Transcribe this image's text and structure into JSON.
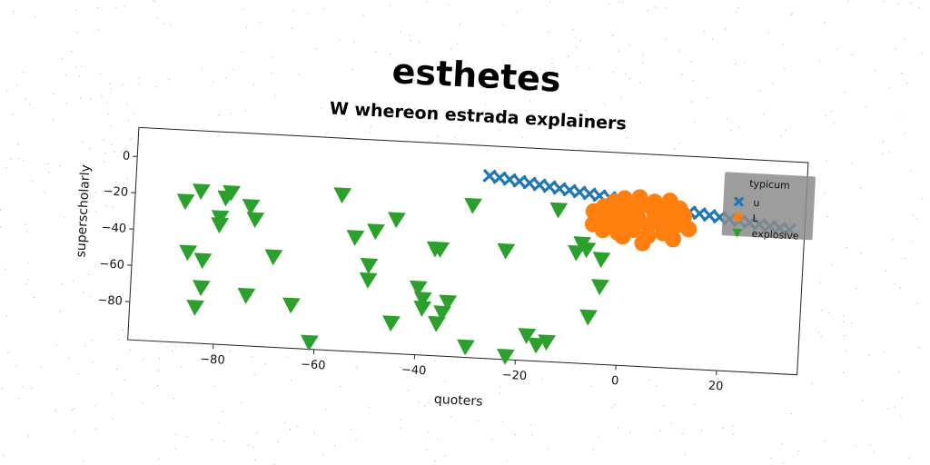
{
  "chart_data": {
    "type": "scatter",
    "title": "esthetes",
    "subtitle": "W whereon estrada explainers",
    "xlabel": "quoters",
    "ylabel": "superscholarly",
    "xlim": [
      -97,
      36
    ],
    "ylim": [
      -101,
      16
    ],
    "xticks": [
      -80,
      -60,
      -40,
      -20,
      0,
      20
    ],
    "yticks": [
      0,
      -20,
      -40,
      -60,
      -80
    ],
    "xtick_labels": [
      "−80",
      "−60",
      "−40",
      "−20",
      "0",
      "20"
    ],
    "ytick_labels": [
      "0",
      "−20",
      "−40",
      "−60",
      "−80"
    ],
    "grid": false,
    "legend": {
      "title": "typicum",
      "position": "upper right"
    },
    "series": [
      {
        "name": "u",
        "marker": "x",
        "color": "#1f77b4",
        "points": [
          [
            -27.0,
            -0.5
          ],
          [
            -25.0,
            -1.2
          ],
          [
            -23.0,
            -1.9
          ],
          [
            -21.0,
            -2.6
          ],
          [
            -19.0,
            -3.3
          ],
          [
            -17.0,
            -4.0
          ],
          [
            -15.0,
            -4.7
          ],
          [
            -13.0,
            -5.4
          ],
          [
            -11.0,
            -6.1
          ],
          [
            -9.0,
            -6.8
          ],
          [
            -7.0,
            -7.5
          ],
          [
            -5.0,
            -8.2
          ],
          [
            -3.0,
            -8.9
          ],
          [
            -1.0,
            -9.6
          ],
          [
            1.0,
            -10.3
          ],
          [
            3.0,
            -11.0
          ],
          [
            5.0,
            -11.7
          ],
          [
            7.0,
            -12.4
          ],
          [
            9.0,
            -13.1
          ],
          [
            11.0,
            -13.8
          ],
          [
            13.0,
            -14.5
          ],
          [
            15.0,
            -15.2
          ],
          [
            17.0,
            -15.9
          ],
          [
            19.0,
            -16.6
          ],
          [
            21.0,
            -17.3
          ],
          [
            23.0,
            -18.0
          ],
          [
            25.0,
            -18.7
          ],
          [
            27.0,
            -19.4
          ],
          [
            29.0,
            -20.1
          ],
          [
            31.0,
            -20.8
          ],
          [
            33.0,
            -21.5
          ]
        ]
      },
      {
        "name": "L",
        "marker": "o",
        "color": "#ff7f0e",
        "points": [
          [
            -6,
            -17
          ],
          [
            -4,
            -14
          ],
          [
            -2,
            -19
          ],
          [
            0,
            -15
          ],
          [
            2,
            -18
          ],
          [
            4,
            -12
          ],
          [
            6,
            -16
          ],
          [
            8,
            -13
          ],
          [
            10,
            -18
          ],
          [
            -5,
            -22
          ],
          [
            -3,
            -25
          ],
          [
            -1,
            -21
          ],
          [
            1,
            -24
          ],
          [
            3,
            -20
          ],
          [
            5,
            -23
          ],
          [
            7,
            -21
          ],
          [
            9,
            -25
          ],
          [
            11,
            -22
          ],
          [
            -2,
            -11
          ],
          [
            0,
            -9
          ],
          [
            3,
            -8
          ],
          [
            6,
            -10
          ],
          [
            9,
            -9
          ],
          [
            12,
            -17
          ],
          [
            13,
            -24
          ],
          [
            -4,
            -27
          ],
          [
            -1,
            -28
          ],
          [
            2,
            -26
          ],
          [
            5,
            -29
          ],
          [
            8,
            -27
          ],
          [
            10,
            -30
          ],
          [
            4,
            -33
          ],
          [
            0,
            -30
          ],
          [
            -3,
            -19
          ],
          [
            7,
            -19
          ],
          [
            11,
            -13
          ],
          [
            -6,
            -24
          ],
          [
            1,
            -13
          ]
        ]
      },
      {
        "name": "explosive",
        "marker": "v",
        "color": "#2ca02c",
        "points": [
          [
            -87,
            -23
          ],
          [
            -84,
            -17
          ],
          [
            -79,
            -20
          ],
          [
            -78,
            -17
          ],
          [
            -74,
            -24
          ],
          [
            -73,
            -31
          ],
          [
            -80,
            -31
          ],
          [
            -80,
            -35
          ],
          [
            -69,
            -51
          ],
          [
            -86,
            -51
          ],
          [
            -83,
            -55
          ],
          [
            -83,
            -70
          ],
          [
            -84,
            -81
          ],
          [
            -74,
            -73
          ],
          [
            -65,
            -77
          ],
          [
            -61,
            -97
          ],
          [
            -56,
            -15
          ],
          [
            -53,
            -38
          ],
          [
            -49,
            -34
          ],
          [
            -45,
            -27
          ],
          [
            -50,
            -53
          ],
          [
            -50,
            -61
          ],
          [
            -45,
            -84
          ],
          [
            -40,
            -64
          ],
          [
            -39,
            -70
          ],
          [
            -39,
            -75
          ],
          [
            -36,
            -42
          ],
          [
            -37,
            -42
          ],
          [
            -34,
            -71
          ],
          [
            -35,
            -77
          ],
          [
            -36,
            -83
          ],
          [
            -30,
            -95
          ],
          [
            -30,
            -17
          ],
          [
            -23,
            -41
          ],
          [
            -22,
            -99
          ],
          [
            -18,
            -87
          ],
          [
            -16,
            -92
          ],
          [
            -14,
            -90
          ],
          [
            -13,
            -17
          ],
          [
            -9,
            -40
          ],
          [
            -7,
            -38
          ],
          [
            -4,
            -43
          ],
          [
            -4,
            -58
          ],
          [
            -6,
            -75
          ],
          [
            -8,
            -35
          ]
        ]
      }
    ]
  }
}
